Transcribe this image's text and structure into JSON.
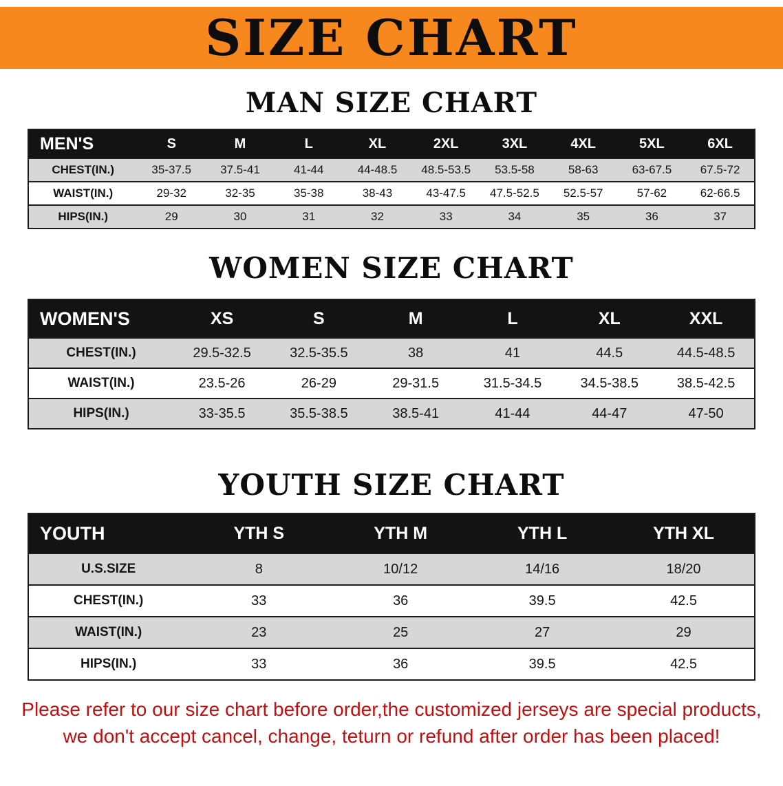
{
  "colors": {
    "banner_bg": "#f6881e",
    "header_row_bg": "#131313",
    "header_row_text": "#ffffff",
    "alt_row_bg": "#d7d7d7",
    "disclaimer_text": "#c21010"
  },
  "banner": {
    "title": "SIZE CHART"
  },
  "sections": [
    {
      "heading": "MAN SIZE CHART",
      "table": {
        "header": [
          "MEN'S",
          "S",
          "M",
          "L",
          "XL",
          "2XL",
          "3XL",
          "4XL",
          "5XL",
          "6XL"
        ],
        "rows": [
          [
            "CHEST(IN.)",
            "35-37.5",
            "37.5-41",
            "41-44",
            "44-48.5",
            "48.5-53.5",
            "53.5-58",
            "58-63",
            "63-67.5",
            "67.5-72"
          ],
          [
            "WAIST(IN.)",
            "29-32",
            "32-35",
            "35-38",
            "38-43",
            "43-47.5",
            "47.5-52.5",
            "52.5-57",
            "57-62",
            "62-66.5"
          ],
          [
            "HIPS(IN.)",
            "29",
            "30",
            "31",
            "32",
            "33",
            "34",
            "35",
            "36",
            "37"
          ]
        ]
      }
    },
    {
      "heading": "WOMEN SIZE CHART",
      "table": {
        "header": [
          "WOMEN'S",
          "XS",
          "S",
          "M",
          "L",
          "XL",
          "XXL"
        ],
        "rows": [
          [
            "CHEST(IN.)",
            "29.5-32.5",
            "32.5-35.5",
            "38",
            "41",
            "44.5",
            "44.5-48.5"
          ],
          [
            "WAIST(IN.)",
            "23.5-26",
            "26-29",
            "29-31.5",
            "31.5-34.5",
            "34.5-38.5",
            "38.5-42.5"
          ],
          [
            "HIPS(IN.)",
            "33-35.5",
            "35.5-38.5",
            "38.5-41",
            "41-44",
            "44-47",
            "47-50"
          ]
        ]
      }
    },
    {
      "heading": "YOUTH SIZE CHART",
      "table": {
        "header": [
          "YOUTH",
          "YTH S",
          "YTH M",
          "YTH L",
          "YTH XL"
        ],
        "rows": [
          [
            "U.S.SIZE",
            "8",
            "10/12",
            "14/16",
            "18/20"
          ],
          [
            "CHEST(IN.)",
            "33",
            "36",
            "39.5",
            "42.5"
          ],
          [
            "WAIST(IN.)",
            "23",
            "25",
            "27",
            "29"
          ],
          [
            "HIPS(IN.)",
            "33",
            "36",
            "39.5",
            "42.5"
          ]
        ]
      }
    }
  ],
  "footer": {
    "line1": "Please refer to our size chart before order,the customized jerseys are special products,",
    "line2": "we don't accept cancel, change, teturn or refund after order has been placed!"
  }
}
